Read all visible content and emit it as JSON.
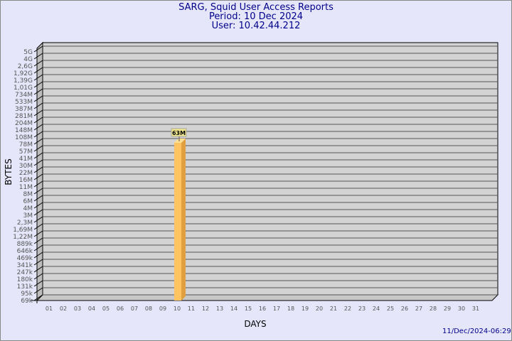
{
  "chart_data": {
    "type": "bar",
    "title": [
      "SARG, Squid User Access Reports",
      "Period: 10 Dec 2024",
      "User: 10.42.44.212"
    ],
    "xlabel": "DAYS",
    "ylabel": "BYTES",
    "y_scale": "log",
    "y_tick_labels": [
      "5G",
      "4G",
      "2,6G",
      "1,92G",
      "1,39G",
      "1,01G",
      "734M",
      "533M",
      "387M",
      "281M",
      "204M",
      "148M",
      "108M",
      "78M",
      "57M",
      "41M",
      "30M",
      "22M",
      "16M",
      "11M",
      "8M",
      "6M",
      "4M",
      "3M",
      "2,3M",
      "1,69M",
      "1,22M",
      "889k",
      "646k",
      "469k",
      "341k",
      "247k",
      "180k",
      "131k",
      "95k",
      "69k"
    ],
    "categories": [
      "01",
      "02",
      "03",
      "04",
      "05",
      "06",
      "07",
      "08",
      "09",
      "10",
      "11",
      "12",
      "13",
      "14",
      "15",
      "16",
      "17",
      "18",
      "19",
      "20",
      "21",
      "22",
      "23",
      "24",
      "25",
      "26",
      "27",
      "28",
      "29",
      "30",
      "31"
    ],
    "bars": [
      {
        "day": "10",
        "value_label": "63M"
      }
    ],
    "grid": true,
    "colors": {
      "bar": "#ffc462",
      "bar_side": "#e0a040",
      "wall": "#d3d3d3",
      "text": "#00008b",
      "label_bg": "#f0e68c"
    }
  },
  "footer": {
    "timestamp": "11/Dec/2024-06:29"
  }
}
